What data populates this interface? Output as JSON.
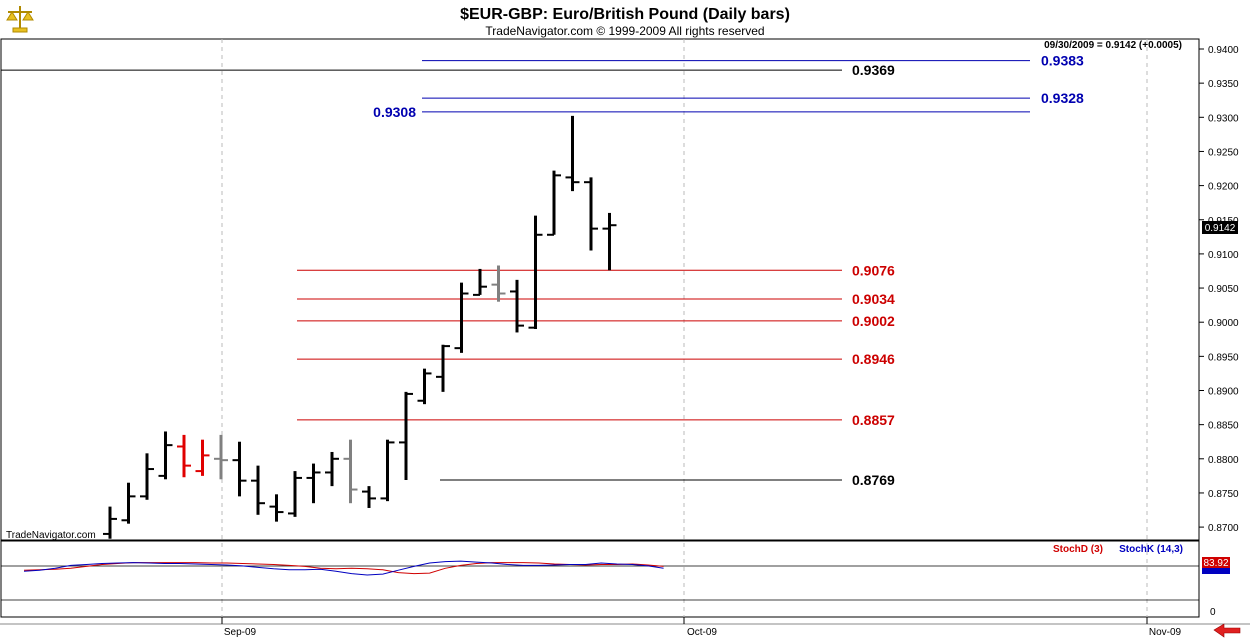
{
  "header": {
    "title": "$EUR-GBP:  Euro/British Pound  (Daily bars)",
    "subtitle": "TradeNavigator.com © 1999-2009 All rights reserved"
  },
  "readout": "09/30/2009 = 0.9142 (+0.0005)",
  "watermark": "TradeNavigator.com",
  "last_price": "0.9142",
  "indicator": {
    "stochd_label": "StochD (3)",
    "stochk_label": "StochK (14,3)",
    "value_label": "83.92",
    "zero_label": "0"
  },
  "colors": {
    "bar": "#000000",
    "bar_alt": "#808080",
    "bar_red": "#e00000",
    "blue_level": "#0000b0",
    "red_level": "#cc0000",
    "black_level": "#000000",
    "stochd": "#d00000",
    "stochk": "#0000c0"
  },
  "icons": {
    "logo": "scales-icon",
    "nav": "left-arrow-icon"
  },
  "chart_data": {
    "type": "ohlc",
    "ylim": [
      0.866,
      0.9425
    ],
    "y_ticks": [
      "0.9400",
      "0.9350",
      "0.9300",
      "0.9250",
      "0.9200",
      "0.9150",
      "0.9100",
      "0.9050",
      "0.9000",
      "0.8950",
      "0.8900",
      "0.8850",
      "0.8800",
      "0.8750",
      "0.8700"
    ],
    "x_ticks": [
      "Sep-09",
      "Oct-09",
      "Nov-09"
    ],
    "levels": [
      {
        "label": "0.9383",
        "value": 0.9383,
        "color": "blue"
      },
      {
        "label": "0.9369",
        "value": 0.9369,
        "color": "black"
      },
      {
        "label": "0.9328",
        "value": 0.9328,
        "color": "blue"
      },
      {
        "label": "0.9308",
        "value": 0.9308,
        "color": "blue"
      },
      {
        "label": "0.9076",
        "value": 0.9076,
        "color": "red"
      },
      {
        "label": "0.9034",
        "value": 0.9034,
        "color": "red"
      },
      {
        "label": "0.9002",
        "value": 0.9002,
        "color": "red"
      },
      {
        "label": "0.8946",
        "value": 0.8946,
        "color": "red"
      },
      {
        "label": "0.8857",
        "value": 0.8857,
        "color": "red"
      },
      {
        "label": "0.8769",
        "value": 0.8769,
        "color": "black"
      }
    ],
    "bars": [
      {
        "o": 0.869,
        "h": 0.873,
        "l": 0.8683,
        "c": 0.8712,
        "col": "black"
      },
      {
        "o": 0.871,
        "h": 0.8765,
        "l": 0.8705,
        "c": 0.8745,
        "col": "black"
      },
      {
        "o": 0.8745,
        "h": 0.8808,
        "l": 0.874,
        "c": 0.8785,
        "col": "black"
      },
      {
        "o": 0.8775,
        "h": 0.884,
        "l": 0.877,
        "c": 0.882,
        "col": "black"
      },
      {
        "o": 0.8818,
        "h": 0.8835,
        "l": 0.8773,
        "c": 0.879,
        "col": "red"
      },
      {
        "o": 0.8782,
        "h": 0.8828,
        "l": 0.8775,
        "c": 0.8805,
        "col": "red"
      },
      {
        "o": 0.88,
        "h": 0.8835,
        "l": 0.877,
        "c": 0.8798,
        "col": "gray"
      },
      {
        "o": 0.8798,
        "h": 0.8825,
        "l": 0.8745,
        "c": 0.8768,
        "col": "black"
      },
      {
        "o": 0.8768,
        "h": 0.879,
        "l": 0.8718,
        "c": 0.8735,
        "col": "black"
      },
      {
        "o": 0.873,
        "h": 0.8748,
        "l": 0.8708,
        "c": 0.8722,
        "col": "black"
      },
      {
        "o": 0.872,
        "h": 0.8782,
        "l": 0.8715,
        "c": 0.8772,
        "col": "black"
      },
      {
        "o": 0.8772,
        "h": 0.8793,
        "l": 0.8735,
        "c": 0.878,
        "col": "black"
      },
      {
        "o": 0.878,
        "h": 0.881,
        "l": 0.876,
        "c": 0.88,
        "col": "black"
      },
      {
        "o": 0.88,
        "h": 0.8828,
        "l": 0.8735,
        "c": 0.8755,
        "col": "gray"
      },
      {
        "o": 0.8752,
        "h": 0.876,
        "l": 0.8728,
        "c": 0.8742,
        "col": "black"
      },
      {
        "o": 0.8742,
        "h": 0.8828,
        "l": 0.8738,
        "c": 0.8824,
        "col": "black"
      },
      {
        "o": 0.8824,
        "h": 0.8898,
        "l": 0.8769,
        "c": 0.8895,
        "col": "black"
      },
      {
        "o": 0.8885,
        "h": 0.8932,
        "l": 0.888,
        "c": 0.8925,
        "col": "black"
      },
      {
        "o": 0.892,
        "h": 0.8967,
        "l": 0.8898,
        "c": 0.8965,
        "col": "black"
      },
      {
        "o": 0.8962,
        "h": 0.9058,
        "l": 0.8955,
        "c": 0.9042,
        "col": "black"
      },
      {
        "o": 0.904,
        "h": 0.9078,
        "l": 0.904,
        "c": 0.9052,
        "col": "black"
      },
      {
        "o": 0.9055,
        "h": 0.9083,
        "l": 0.903,
        "c": 0.9042,
        "col": "gray"
      },
      {
        "o": 0.9045,
        "h": 0.9062,
        "l": 0.8985,
        "c": 0.8995,
        "col": "black"
      },
      {
        "o": 0.8992,
        "h": 0.9156,
        "l": 0.899,
        "c": 0.9128,
        "col": "black"
      },
      {
        "o": 0.9128,
        "h": 0.9222,
        "l": 0.9128,
        "c": 0.9215,
        "col": "black"
      },
      {
        "o": 0.9212,
        "h": 0.9302,
        "l": 0.9192,
        "c": 0.9205,
        "col": "black"
      },
      {
        "o": 0.9205,
        "h": 0.9212,
        "l": 0.9105,
        "c": 0.9137,
        "col": "black"
      },
      {
        "o": 0.9137,
        "h": 0.916,
        "l": 0.9076,
        "c": 0.9142,
        "col": "black"
      }
    ],
    "stoch_ylim": [
      0,
      100
    ],
    "stochD": [
      62,
      63,
      64,
      66,
      70,
      74,
      76,
      78,
      78,
      78,
      78,
      78,
      77,
      77,
      76,
      75,
      74,
      72,
      70,
      66,
      65,
      66,
      65,
      63,
      57,
      55,
      56,
      66,
      72,
      76,
      78,
      78,
      78,
      77,
      75,
      74,
      73,
      74,
      74,
      75,
      73,
      70
    ],
    "stochK": [
      60,
      62,
      66,
      72,
      74,
      76,
      77,
      78,
      77,
      76,
      76,
      75,
      74,
      73,
      71,
      68,
      65,
      63,
      63,
      64,
      60,
      55,
      52,
      54,
      62,
      70,
      77,
      80,
      81,
      79,
      77,
      74,
      72,
      72,
      73,
      74,
      74,
      77,
      75,
      74,
      71,
      66
    ]
  }
}
